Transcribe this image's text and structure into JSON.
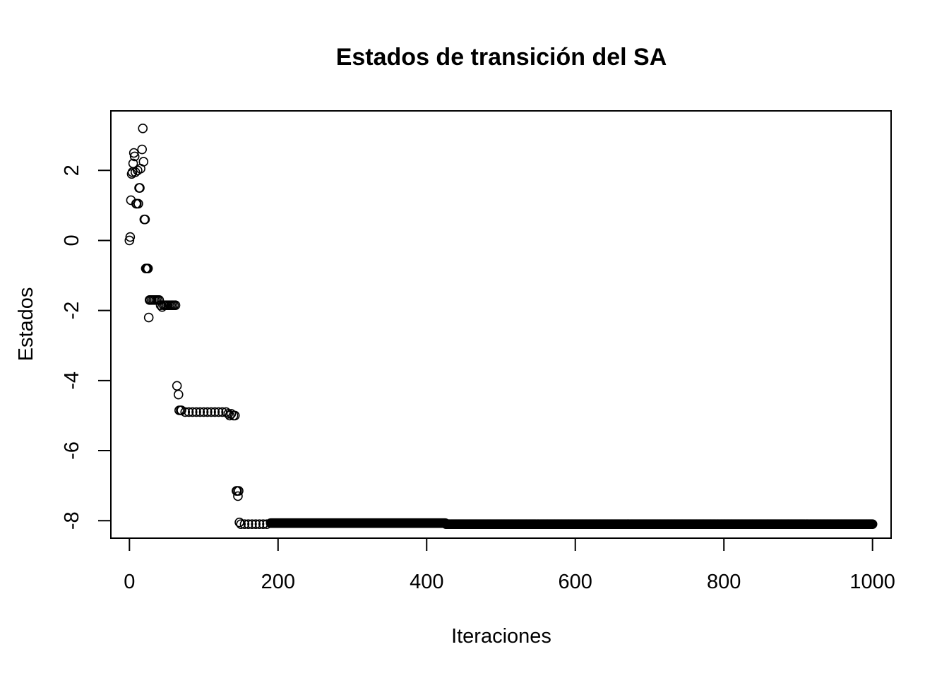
{
  "chart_data": {
    "type": "scatter",
    "title": "Estados de transición del SA",
    "xlabel": "Iteraciones",
    "ylabel": "Estados",
    "xlim": [
      -25,
      1025
    ],
    "ylim": [
      -8.5,
      3.7
    ],
    "x_ticks": [
      0,
      200,
      400,
      600,
      800,
      1000
    ],
    "y_ticks": [
      -8,
      -6,
      -4,
      -2,
      0,
      2
    ],
    "x_tick_labels": [
      "0",
      "200",
      "400",
      "600",
      "800",
      "1000"
    ],
    "y_tick_labels": [
      "-8",
      "-6",
      "-4",
      "-2",
      "0",
      "2"
    ],
    "grid": false,
    "legend": "none",
    "marker": "open-circle",
    "series": [
      {
        "points": [
          [
            0,
            0.0
          ],
          [
            1,
            0.1
          ],
          [
            2,
            1.15
          ],
          [
            3,
            1.9
          ],
          [
            4,
            1.95
          ],
          [
            5,
            2.2
          ],
          [
            6,
            2.5
          ],
          [
            7,
            2.4
          ],
          [
            8,
            1.95
          ],
          [
            9,
            1.05
          ],
          [
            10,
            1.05
          ],
          [
            11,
            2.0
          ],
          [
            12,
            1.05
          ],
          [
            13,
            1.5
          ],
          [
            14,
            1.5
          ],
          [
            15,
            2.05
          ],
          [
            17,
            2.6
          ],
          [
            18,
            3.2
          ],
          [
            19,
            2.25
          ],
          [
            20,
            0.6
          ],
          [
            21,
            0.6
          ],
          [
            22,
            -0.8
          ],
          [
            23,
            -0.8
          ],
          [
            24,
            -0.8
          ],
          [
            25,
            -0.8
          ],
          [
            26,
            -2.2
          ],
          [
            27,
            -1.7
          ],
          [
            28,
            -1.7
          ],
          [
            30,
            -1.7
          ],
          [
            32,
            -1.7
          ],
          [
            34,
            -1.7
          ],
          [
            36,
            -1.7
          ],
          [
            38,
            -1.7
          ],
          [
            40,
            -1.7
          ],
          [
            42,
            -1.85
          ],
          [
            44,
            -1.9
          ],
          [
            46,
            -1.85
          ],
          [
            48,
            -1.85
          ],
          [
            50,
            -1.85
          ],
          [
            52,
            -1.85
          ],
          [
            54,
            -1.85
          ],
          [
            56,
            -1.85
          ],
          [
            58,
            -1.85
          ],
          [
            60,
            -1.85
          ],
          [
            62,
            -1.85
          ],
          [
            64,
            -4.15
          ],
          [
            66,
            -4.4
          ],
          [
            67,
            -4.85
          ],
          [
            69,
            -4.85
          ],
          [
            70,
            -4.85
          ],
          [
            75,
            -4.9
          ],
          [
            80,
            -4.9
          ],
          [
            85,
            -4.9
          ],
          [
            90,
            -4.9
          ],
          [
            95,
            -4.9
          ],
          [
            100,
            -4.9
          ],
          [
            105,
            -4.9
          ],
          [
            110,
            -4.9
          ],
          [
            115,
            -4.9
          ],
          [
            120,
            -4.9
          ],
          [
            125,
            -4.9
          ],
          [
            130,
            -4.9
          ],
          [
            133,
            -4.95
          ],
          [
            135,
            -5.0
          ],
          [
            137,
            -4.95
          ],
          [
            140,
            -5.0
          ],
          [
            142,
            -5.0
          ],
          [
            144,
            -7.15
          ],
          [
            145,
            -7.15
          ],
          [
            146,
            -7.3
          ],
          [
            147,
            -7.15
          ],
          [
            148,
            -8.05
          ],
          [
            150,
            -8.1
          ],
          [
            155,
            -8.1
          ],
          [
            160,
            -8.1
          ],
          [
            165,
            -8.1
          ],
          [
            170,
            -8.1
          ],
          [
            175,
            -8.1
          ],
          [
            180,
            -8.1
          ],
          [
            185,
            -8.1
          ]
        ],
        "segments": [
          {
            "x_from": 190,
            "x_to": 425,
            "y": -8.07
          },
          {
            "x_from": 426,
            "x_to": 1000,
            "y": -8.1
          }
        ]
      }
    ]
  }
}
